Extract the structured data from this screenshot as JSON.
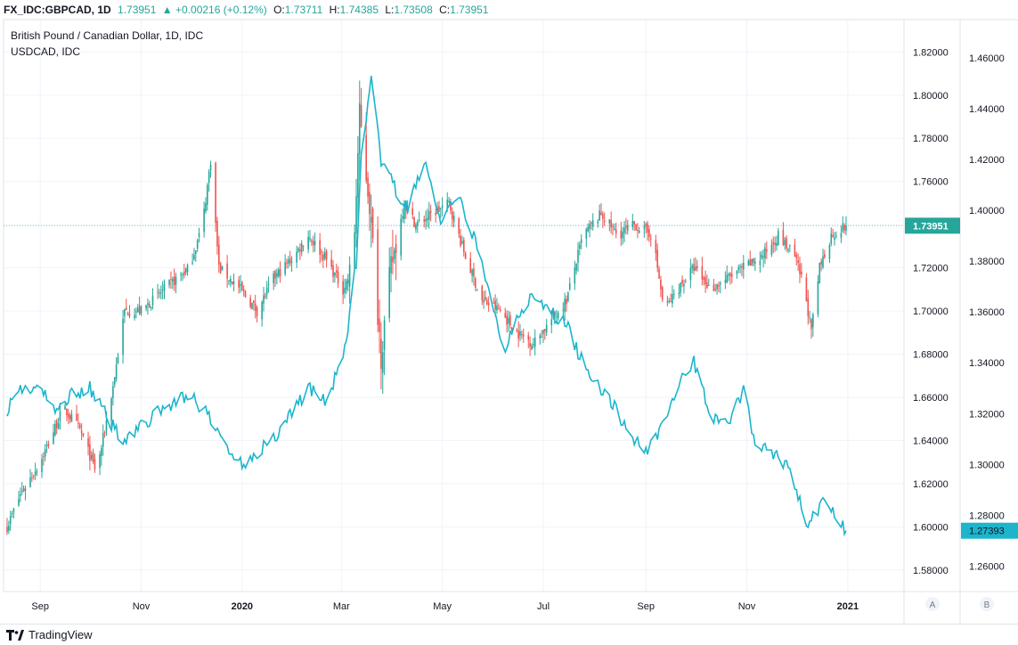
{
  "header": {
    "symbol": "FX_IDC:GBPCAD, 1D",
    "last": "1.73951",
    "change": "+0.00216 (+0.12%)",
    "o_label": "O:",
    "o": "1.73711",
    "h_label": "H:",
    "h": "1.74385",
    "l_label": "L:",
    "l": "1.73508",
    "c_label": "C:",
    "c": "1.73951"
  },
  "legend": {
    "main": "British Pound / Canadian Dollar, 1D, IDC",
    "compare": "USDCAD, IDC"
  },
  "footer": {
    "brand": "TradingView"
  },
  "scale_buttons": {
    "a": "A",
    "b": "B"
  },
  "colors": {
    "up": "#26a69a",
    "down": "#ef5350",
    "compare_line": "#1cb5cc",
    "grid": "#f0f3fa",
    "axis_text": "#131722"
  },
  "chart_data": {
    "type": "candlestick+line",
    "x_ticks": [
      "Sep",
      "Nov",
      "2020",
      "Mar",
      "May",
      "Jul",
      "Sep",
      "Nov",
      "2021"
    ],
    "left_axis_ticks": [
      "1.82000",
      "1.80000",
      "1.78000",
      "1.76000",
      "1.74000",
      "1.72000",
      "1.70000",
      "1.68000",
      "1.66000",
      "1.64000",
      "1.62000",
      "1.60000",
      "1.58000"
    ],
    "right_axis_ticks": [
      "1.46000",
      "1.44000",
      "1.42000",
      "1.40000",
      "1.38000",
      "1.36000",
      "1.34000",
      "1.32000",
      "1.30000",
      "1.28000",
      "1.26000"
    ],
    "left_ylim": [
      1.57,
      1.835
    ],
    "right_ylim": [
      1.25,
      1.475
    ],
    "last_price_left": "1.73951",
    "last_price_right": "1.27393",
    "gbpcad_close_keypoints": [
      [
        "2019-08-12",
        1.6
      ],
      [
        "2019-08-20",
        1.615
      ],
      [
        "2019-09-01",
        1.63
      ],
      [
        "2019-09-15",
        1.655
      ],
      [
        "2019-09-25",
        1.645
      ],
      [
        "2019-10-05",
        1.625
      ],
      [
        "2019-10-15",
        1.665
      ],
      [
        "2019-10-22",
        1.7
      ],
      [
        "2019-11-01",
        1.7
      ],
      [
        "2019-11-15",
        1.71
      ],
      [
        "2019-11-30",
        1.72
      ],
      [
        "2019-12-08",
        1.74
      ],
      [
        "2019-12-13",
        1.77
      ],
      [
        "2019-12-18",
        1.72
      ],
      [
        "2019-12-31",
        1.71
      ],
      [
        "2020-01-10",
        1.7
      ],
      [
        "2020-01-20",
        1.715
      ],
      [
        "2020-02-01",
        1.725
      ],
      [
        "2020-02-10",
        1.735
      ],
      [
        "2020-02-20",
        1.725
      ],
      [
        "2020-03-02",
        1.71
      ],
      [
        "2020-03-08",
        1.72
      ],
      [
        "2020-03-12",
        1.79
      ],
      [
        "2020-03-18",
        1.75
      ],
      [
        "2020-03-25",
        1.68
      ],
      [
        "2020-03-31",
        1.72
      ],
      [
        "2020-04-08",
        1.75
      ],
      [
        "2020-04-15",
        1.74
      ],
      [
        "2020-04-25",
        1.745
      ],
      [
        "2020-05-05",
        1.75
      ],
      [
        "2020-05-15",
        1.725
      ],
      [
        "2020-05-25",
        1.705
      ],
      [
        "2020-06-05",
        1.7
      ],
      [
        "2020-06-15",
        1.69
      ],
      [
        "2020-06-25",
        1.685
      ],
      [
        "2020-07-05",
        1.695
      ],
      [
        "2020-07-15",
        1.705
      ],
      [
        "2020-07-25",
        1.735
      ],
      [
        "2020-08-05",
        1.745
      ],
      [
        "2020-08-15",
        1.735
      ],
      [
        "2020-08-25",
        1.74
      ],
      [
        "2020-09-05",
        1.735
      ],
      [
        "2020-09-12",
        1.7
      ],
      [
        "2020-09-20",
        1.71
      ],
      [
        "2020-09-30",
        1.72
      ],
      [
        "2020-10-10",
        1.71
      ],
      [
        "2020-10-20",
        1.715
      ],
      [
        "2020-10-30",
        1.72
      ],
      [
        "2020-11-10",
        1.725
      ],
      [
        "2020-11-20",
        1.735
      ],
      [
        "2020-11-30",
        1.725
      ],
      [
        "2020-12-06",
        1.71
      ],
      [
        "2020-12-10",
        1.69
      ],
      [
        "2020-12-15",
        1.72
      ],
      [
        "2020-12-22",
        1.735
      ],
      [
        "2020-12-31",
        1.73951
      ]
    ],
    "usdcad_keypoints": [
      [
        "2019-08-12",
        1.322
      ],
      [
        "2019-08-20",
        1.33
      ],
      [
        "2019-09-01",
        1.33
      ],
      [
        "2019-09-10",
        1.32
      ],
      [
        "2019-09-20",
        1.328
      ],
      [
        "2019-10-01",
        1.33
      ],
      [
        "2019-10-10",
        1.32
      ],
      [
        "2019-10-20",
        1.31
      ],
      [
        "2019-11-01",
        1.315
      ],
      [
        "2019-11-15",
        1.322
      ],
      [
        "2019-11-30",
        1.328
      ],
      [
        "2019-12-10",
        1.32
      ],
      [
        "2019-12-20",
        1.31
      ],
      [
        "2019-12-31",
        1.3
      ],
      [
        "2020-01-10",
        1.305
      ],
      [
        "2020-01-20",
        1.31
      ],
      [
        "2020-02-01",
        1.322
      ],
      [
        "2020-02-10",
        1.33
      ],
      [
        "2020-02-20",
        1.325
      ],
      [
        "2020-03-02",
        1.34
      ],
      [
        "2020-03-10",
        1.38
      ],
      [
        "2020-03-13",
        1.42
      ],
      [
        "2020-03-19",
        1.45
      ],
      [
        "2020-03-25",
        1.42
      ],
      [
        "2020-04-01",
        1.41
      ],
      [
        "2020-04-10",
        1.4
      ],
      [
        "2020-04-20",
        1.42
      ],
      [
        "2020-04-30",
        1.395
      ],
      [
        "2020-05-10",
        1.405
      ],
      [
        "2020-05-20",
        1.39
      ],
      [
        "2020-06-01",
        1.36
      ],
      [
        "2020-06-08",
        1.345
      ],
      [
        "2020-06-15",
        1.36
      ],
      [
        "2020-06-25",
        1.365
      ],
      [
        "2020-07-05",
        1.36
      ],
      [
        "2020-07-15",
        1.355
      ],
      [
        "2020-07-25",
        1.34
      ],
      [
        "2020-08-05",
        1.33
      ],
      [
        "2020-08-15",
        1.32
      ],
      [
        "2020-08-25",
        1.31
      ],
      [
        "2020-09-01",
        1.305
      ],
      [
        "2020-09-10",
        1.315
      ],
      [
        "2020-09-20",
        1.33
      ],
      [
        "2020-09-30",
        1.34
      ],
      [
        "2020-10-10",
        1.32
      ],
      [
        "2020-10-20",
        1.315
      ],
      [
        "2020-10-31",
        1.33
      ],
      [
        "2020-11-05",
        1.31
      ],
      [
        "2020-11-15",
        1.305
      ],
      [
        "2020-11-25",
        1.3
      ],
      [
        "2020-12-01",
        1.29
      ],
      [
        "2020-12-08",
        1.275
      ],
      [
        "2020-12-12",
        1.28
      ],
      [
        "2020-12-18",
        1.285
      ],
      [
        "2020-12-22",
        1.283
      ],
      [
        "2020-12-31",
        1.27393
      ]
    ]
  }
}
